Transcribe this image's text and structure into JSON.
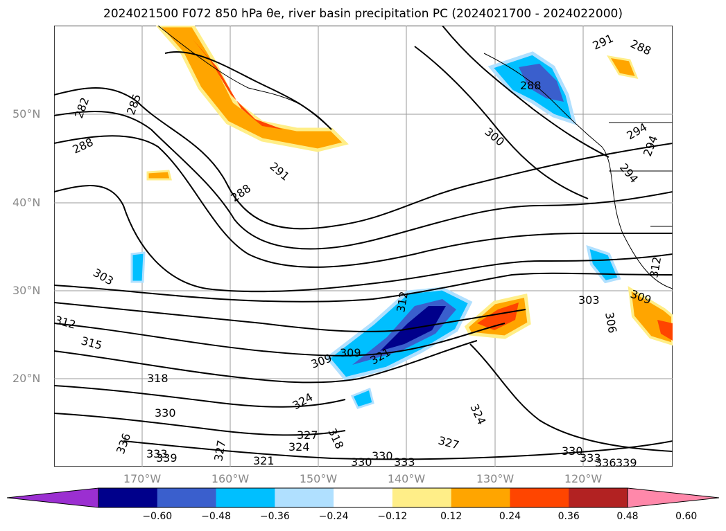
{
  "title": "2024021500 F072 850 hPa θe, river basin precipitation PC (2024021700 - 2024022000)",
  "map": {
    "lat_labels": [
      "50°N",
      "40°N",
      "30°N",
      "20°N"
    ],
    "lon_labels": [
      "170°W",
      "160°W",
      "150°W",
      "140°W",
      "130°W",
      "120°W"
    ],
    "contour_labels": [
      "282",
      "285",
      "288",
      "291",
      "288",
      "291",
      "288",
      "288",
      "300",
      "294",
      "294",
      "294",
      "303",
      "312",
      "315",
      "318",
      "330",
      "336",
      "333",
      "339",
      "327",
      "321",
      "327",
      "324",
      "318",
      "324",
      "309",
      "309",
      "321",
      "312",
      "303",
      "306",
      "309",
      "324",
      "327",
      "330",
      "333",
      "336",
      "339",
      "312",
      "330",
      "333",
      "330"
    ]
  },
  "colorbar": {
    "colors": [
      "#9b2fd1",
      "#00008b",
      "#3a5fcd",
      "#00bfff",
      "#b0e0ff",
      "#ffffff",
      "#ffee88",
      "#ffa500",
      "#ff4500",
      "#b22222",
      "#ff88aa"
    ],
    "tick_labels": [
      "−0.60",
      "−0.48",
      "−0.36",
      "−0.24",
      "−0.12",
      "0.12",
      "0.24",
      "0.36",
      "0.48",
      "0.60"
    ]
  }
}
